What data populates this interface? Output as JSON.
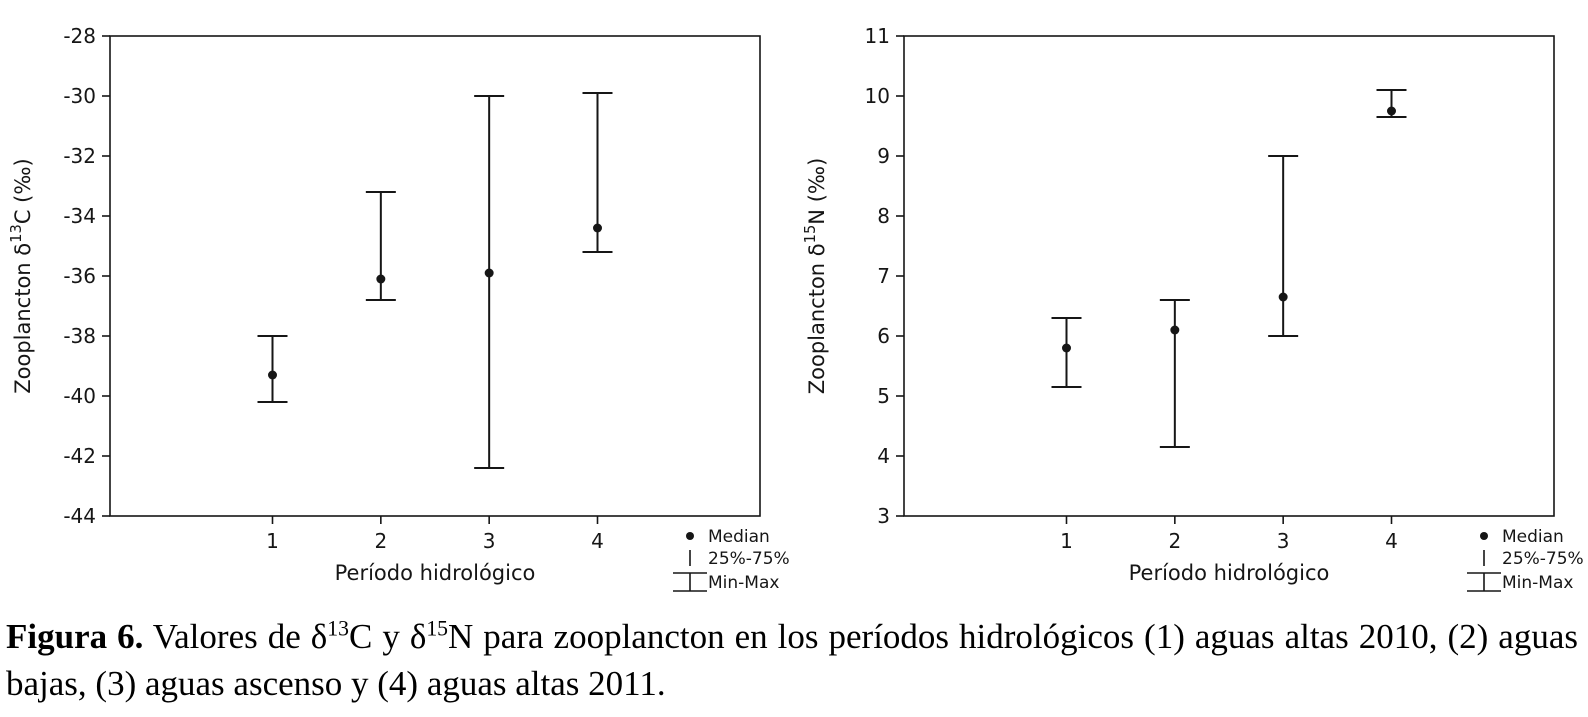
{
  "figure": {
    "background": "#ffffff",
    "ink_color": "#161616"
  },
  "caption": {
    "label": "Figura 6.",
    "segments": [
      {
        "text": " Valores de δ"
      },
      {
        "text": "13",
        "sup": true
      },
      {
        "text": "C y δ"
      },
      {
        "text": "15",
        "sup": true
      },
      {
        "text": "N para zooplancton en los períodos hidrológicos (1) aguas altas 2010, (2) aguas bajas, (3) aguas ascenso y (4) aguas altas 2011."
      }
    ]
  },
  "chart_data": [
    {
      "type": "scatter",
      "style": "median-with-minmax-whiskers",
      "title": "",
      "xlabel": "Período hidrológico",
      "ylabel_parts": [
        {
          "text": "Zooplancton δ"
        },
        {
          "text": "13",
          "sup": true
        },
        {
          "text": "C (‰)"
        }
      ],
      "categories": [
        "1",
        "2",
        "3",
        "4"
      ],
      "ylim": [
        -44,
        -28
      ],
      "ytick_step": 2,
      "grid": false,
      "legend_position": "bottom-right",
      "series": [
        {
          "name": "Median",
          "values": [
            -39.3,
            -36.1,
            -35.9,
            -34.4
          ]
        },
        {
          "name": "Min-Max",
          "min": [
            -40.2,
            -36.8,
            -42.4,
            -35.2
          ],
          "max": [
            -38.0,
            -33.2,
            -30.0,
            -29.9
          ]
        }
      ],
      "legend": [
        {
          "label": "Median",
          "glyph": "dot"
        },
        {
          "label": "25%-75%",
          "glyph": "small-whisker"
        },
        {
          "label": "Min-Max",
          "glyph": "i-beam"
        }
      ]
    },
    {
      "type": "scatter",
      "style": "median-with-minmax-whiskers",
      "title": "",
      "xlabel": "Período hidrológico",
      "ylabel_parts": [
        {
          "text": "Zooplancton δ"
        },
        {
          "text": "15",
          "sup": true
        },
        {
          "text": "N (‰)"
        }
      ],
      "categories": [
        "1",
        "2",
        "3",
        "4"
      ],
      "ylim": [
        3,
        11
      ],
      "ytick_step": 1,
      "grid": false,
      "legend_position": "bottom-right",
      "series": [
        {
          "name": "Median",
          "values": [
            5.8,
            6.1,
            6.65,
            9.75
          ]
        },
        {
          "name": "Min-Max",
          "min": [
            5.15,
            4.15,
            6.0,
            9.65
          ],
          "max": [
            6.3,
            6.6,
            9.0,
            10.1
          ]
        }
      ],
      "legend": [
        {
          "label": "Median",
          "glyph": "dot"
        },
        {
          "label": "25%-75%",
          "glyph": "small-whisker"
        },
        {
          "label": "Min-Max",
          "glyph": "i-beam"
        }
      ]
    }
  ]
}
